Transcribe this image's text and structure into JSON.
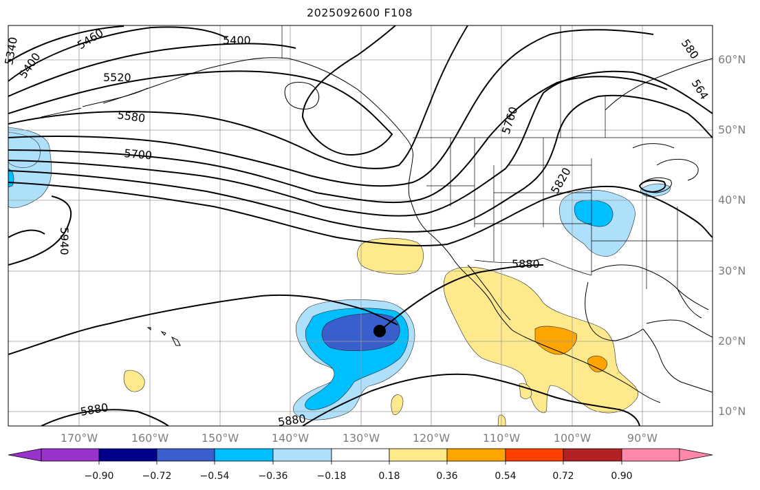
{
  "title": "2025092600 F108",
  "lat_labels": [
    "60°N",
    "50°N",
    "40°N",
    "30°N",
    "20°N",
    "10°N"
  ],
  "lon_labels": [
    "170°W",
    "160°W",
    "150°W",
    "140°W",
    "130°W",
    "120°W",
    "110°W",
    "100°W",
    "90°W"
  ],
  "contour_labels": [
    "5340",
    "5400",
    "5460",
    "5400",
    "5520",
    "5580",
    "5700",
    "5760",
    "5820",
    "5880",
    "5940",
    "5880",
    "5880",
    "580",
    "564"
  ],
  "colorbar": {
    "ticks": [
      "−0.90",
      "−0.72",
      "−0.54",
      "−0.36",
      "−0.18",
      "0.18",
      "0.36",
      "0.54",
      "0.72",
      "0.90"
    ],
    "colors": [
      "#9933cc",
      "#00008b",
      "#3a5fcd",
      "#00bfff",
      "#aee0fb",
      "#ffffff",
      "#feea8c",
      "#ffa500",
      "#ff4000",
      "#b22222",
      "#ff88aa"
    ]
  },
  "marker": "storm-center"
}
